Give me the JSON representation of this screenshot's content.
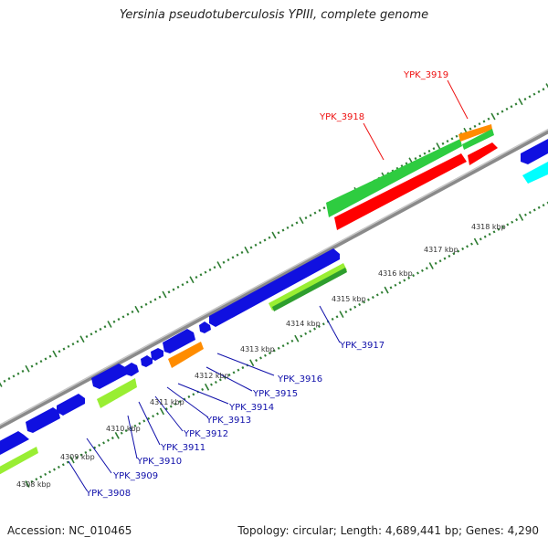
{
  "title": "Yersinia pseudotuberculosis YPIII, complete genome",
  "footer": {
    "accession": "Accession: NC_010465",
    "summary": "Topology: circular; Length: 4,689,441 bp; Genes: 4,290"
  },
  "colors": {
    "backbone": "#999999",
    "tick_green": "#2e7d32",
    "forward_gene": "#1010e0",
    "reverse_gene": "#2ecc40",
    "lime_gene": "#99ee33",
    "orange_gene": "#ff8c00",
    "red_gene": "#ff0000",
    "cyan_gene": "#00ffff",
    "label_blue": "#1010aa",
    "label_red": "#ee1111"
  },
  "kbp_labels": [
    "4308 kbp",
    "4309 kbp",
    "4310 kbp",
    "4311 kbp",
    "4312 kbp",
    "4313 kbp",
    "4314 kbp",
    "4315 kbp",
    "4316 kbp",
    "4317 kbp",
    "4318 kbp"
  ],
  "gene_labels": {
    "ypk3908": "YPK_3908",
    "ypk3909": "YPK_3909",
    "ypk3910": "YPK_3910",
    "ypk3911": "YPK_3911",
    "ypk3912": "YPK_3912",
    "ypk3913": "YPK_3913",
    "ypk3914": "YPK_3914",
    "ypk3915": "YPK_3915",
    "ypk3916": "YPK_3916",
    "ypk3917": "YPK_3917",
    "ypk3918": "YPK_3918",
    "ypk3919": "YPK_3919"
  }
}
